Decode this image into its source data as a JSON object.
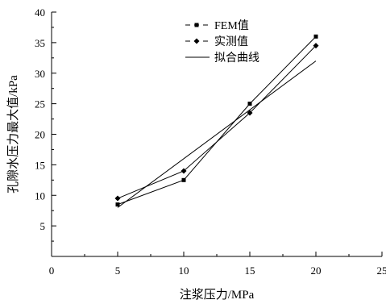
{
  "chart_data": {
    "type": "line",
    "title": "",
    "xlabel": "注浆压力/MPa",
    "ylabel": "孔隙水压力最大值/kPa",
    "xlim": [
      0,
      25
    ],
    "ylim": [
      0,
      40
    ],
    "xticks": [
      0,
      5,
      10,
      15,
      20,
      25
    ],
    "yticks": [
      5,
      10,
      15,
      20,
      25,
      30,
      35,
      40
    ],
    "grid": false,
    "legend_position": "top-center",
    "series": [
      {
        "name": "FEM值",
        "marker": "square",
        "x": [
          5,
          10,
          15,
          20
        ],
        "y": [
          8.5,
          12.5,
          25,
          36
        ]
      },
      {
        "name": "实测值",
        "marker": "diamond",
        "x": [
          5,
          10,
          15,
          20
        ],
        "y": [
          9.5,
          14,
          23.5,
          34.5
        ]
      },
      {
        "name": "拟合曲线",
        "marker": "none",
        "x": [
          5,
          20
        ],
        "y": [
          8,
          32
        ]
      }
    ]
  }
}
